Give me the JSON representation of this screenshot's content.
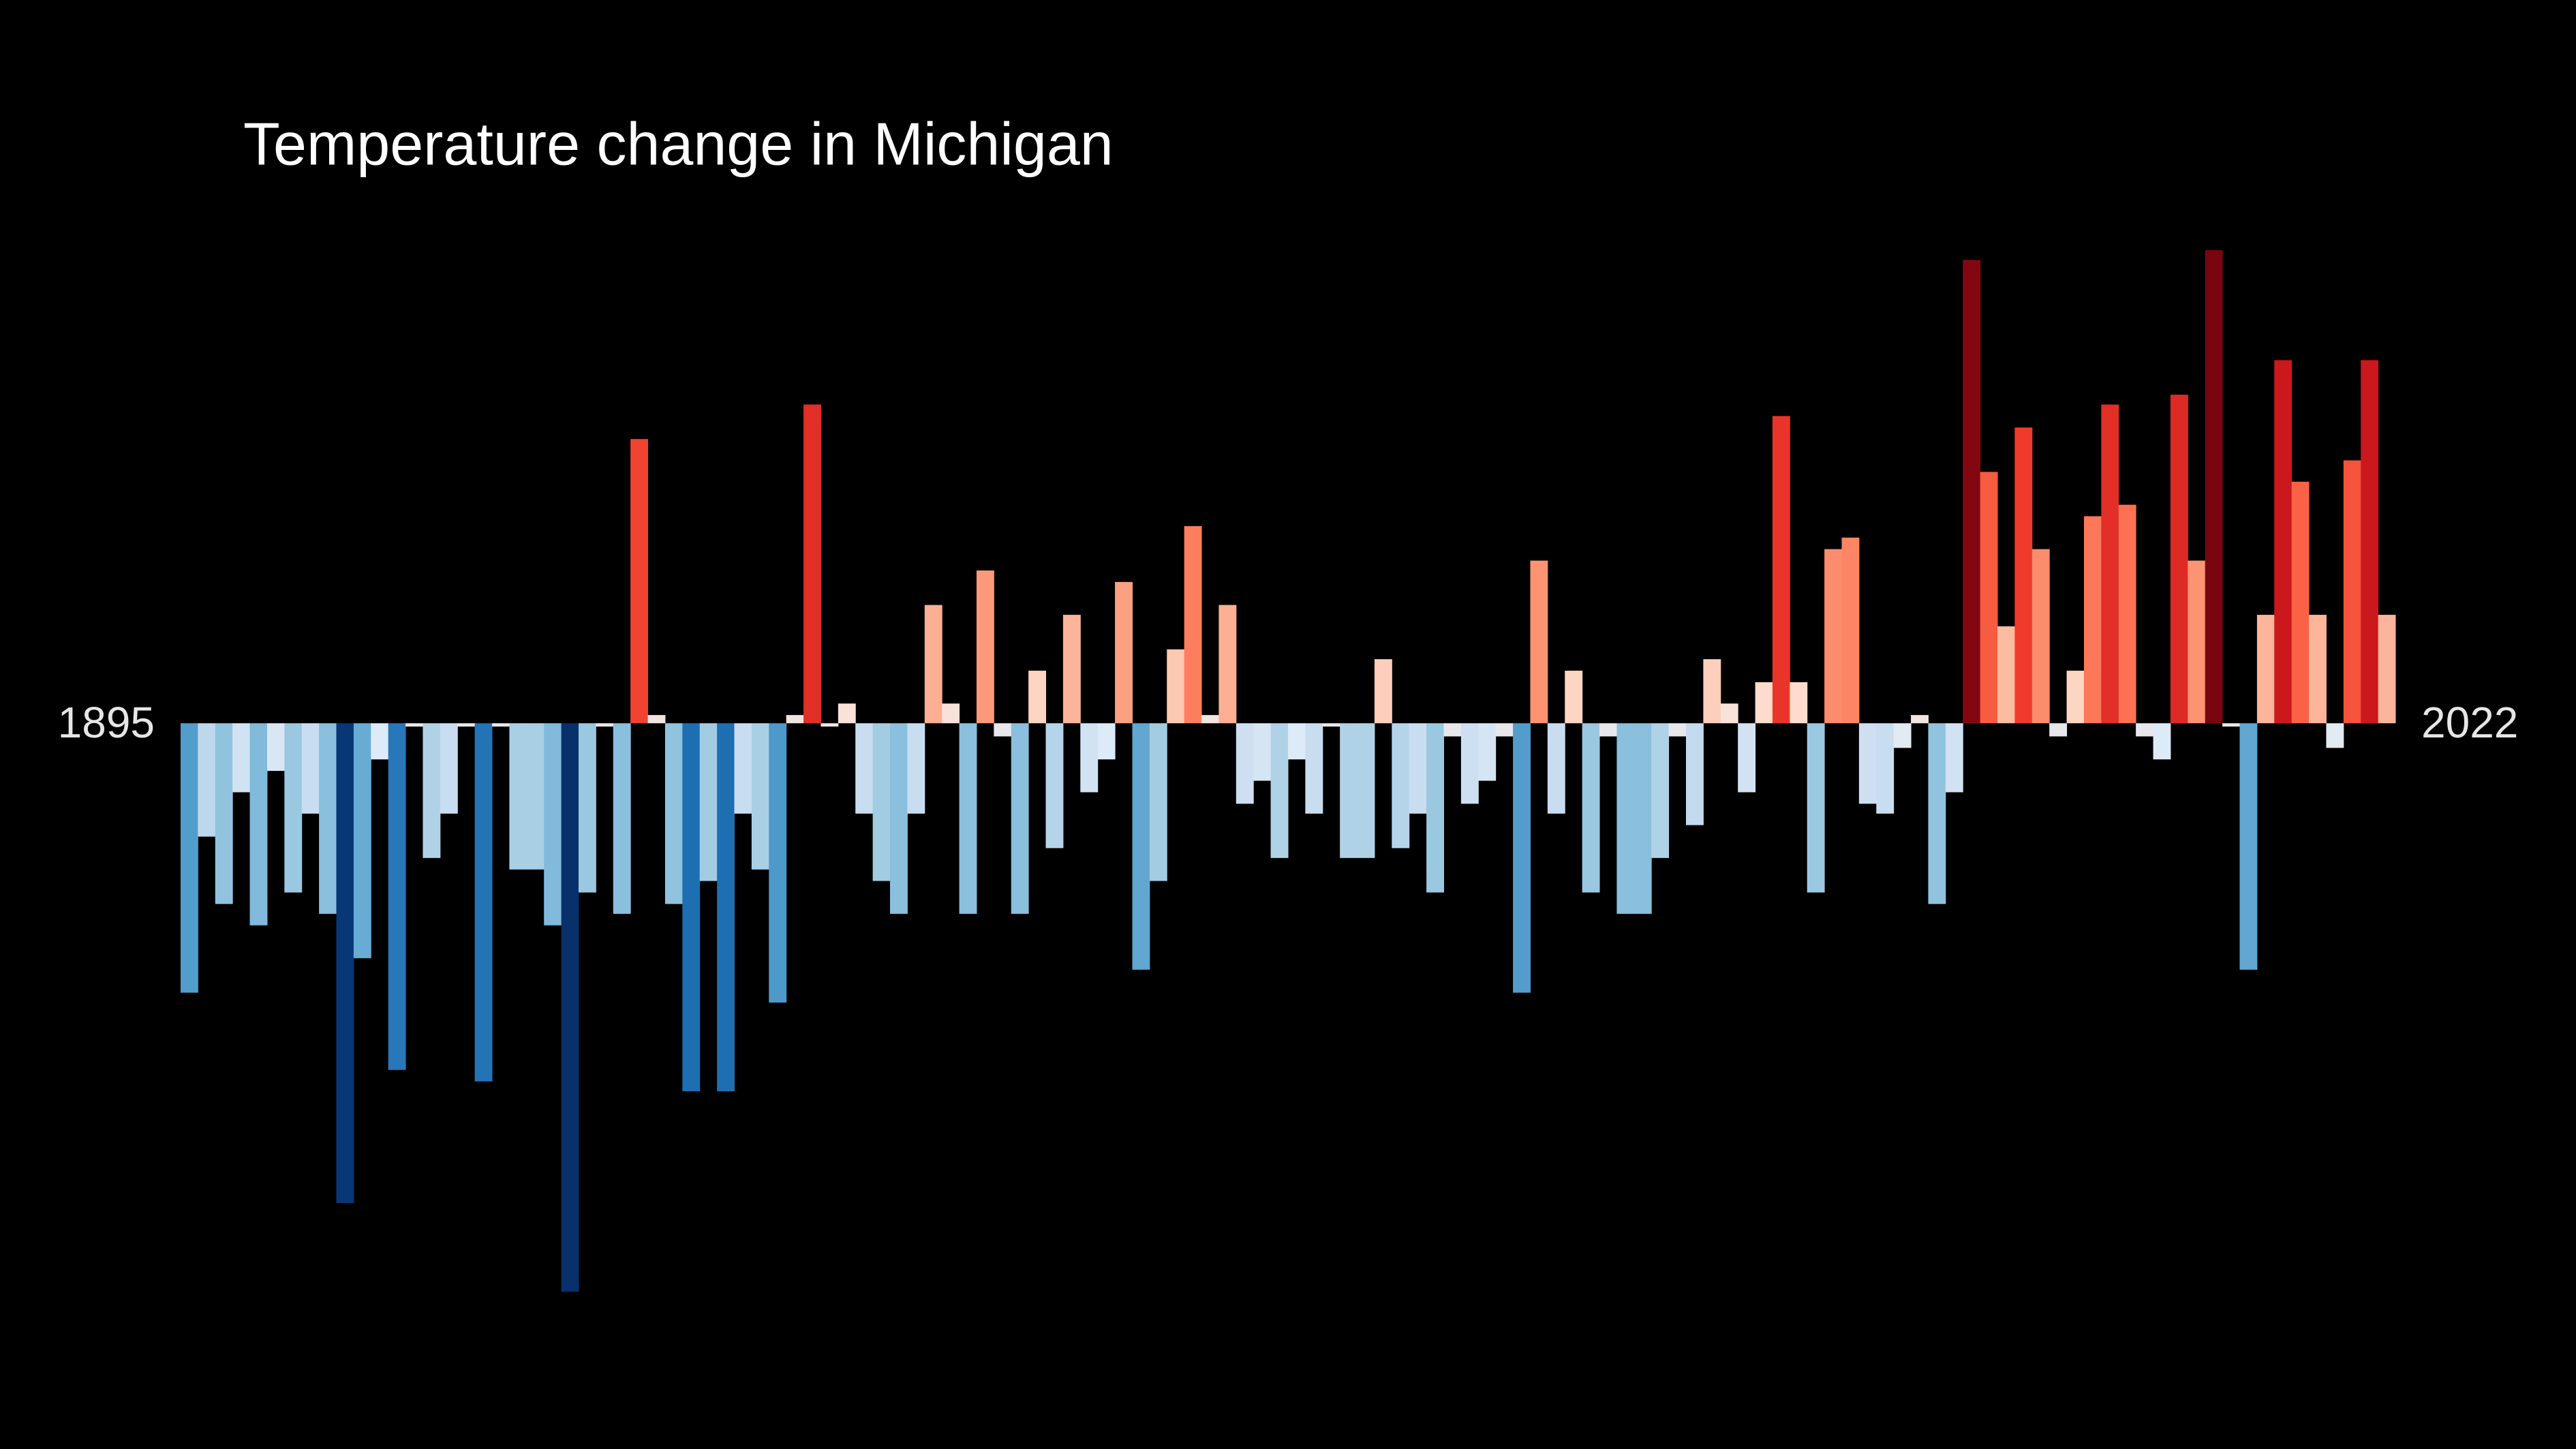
{
  "chart_data": {
    "type": "bar",
    "title": "Temperature change in Michigan",
    "categories": [
      "1895",
      null,
      null,
      null,
      null,
      null,
      null,
      null,
      null,
      null,
      null,
      null,
      null,
      null,
      null,
      null,
      null,
      null,
      null,
      null,
      null,
      null,
      null,
      null,
      null,
      null,
      null,
      null,
      null,
      null,
      null,
      null,
      null,
      null,
      null,
      null,
      null,
      null,
      null,
      null,
      null,
      null,
      null,
      null,
      null,
      null,
      null,
      null,
      null,
      null,
      null,
      null,
      null,
      null,
      null,
      null,
      null,
      null,
      null,
      null,
      null,
      null,
      null,
      null,
      null,
      null,
      null,
      null,
      null,
      null,
      null,
      null,
      null,
      null,
      null,
      null,
      null,
      null,
      null,
      null,
      null,
      null,
      null,
      null,
      null,
      null,
      null,
      null,
      null,
      null,
      null,
      null,
      null,
      null,
      null,
      null,
      null,
      null,
      null,
      null,
      null,
      null,
      null,
      null,
      null,
      null,
      null,
      null,
      null,
      null,
      null,
      null,
      null,
      null,
      null,
      null,
      null,
      null,
      null,
      null,
      null,
      null,
      null,
      null,
      null,
      null,
      null,
      "2022"
    ],
    "values": [
      -1.64,
      -0.69,
      -1.1,
      -0.42,
      -1.23,
      -0.29,
      -1.03,
      -0.55,
      -1.16,
      -2.92,
      -1.43,
      -0.22,
      -2.11,
      -0.02,
      -0.82,
      -0.55,
      -0.02,
      -2.18,
      -0.02,
      -0.89,
      -0.89,
      -1.23,
      -3.46,
      -1.03,
      -0.02,
      -1.16,
      1.73,
      0.05,
      -1.1,
      -2.24,
      -0.96,
      -2.24,
      -0.55,
      -0.89,
      -1.7,
      0.05,
      1.94,
      -0.02,
      0.12,
      -0.55,
      -0.96,
      -1.16,
      -0.55,
      0.72,
      0.12,
      -1.16,
      0.93,
      -0.08,
      -1.16,
      0.32,
      -0.76,
      0.66,
      -0.42,
      -0.22,
      0.86,
      -1.5,
      -0.96,
      0.45,
      1.2,
      0.05,
      0.72,
      -0.49,
      -0.35,
      -0.82,
      -0.22,
      -0.55,
      -0.02,
      -0.82,
      -0.82,
      0.39,
      -0.76,
      -0.55,
      -1.03,
      -0.08,
      -0.49,
      -0.35,
      -0.08,
      -1.64,
      0.99,
      -0.55,
      0.32,
      -1.03,
      -0.08,
      -1.16,
      -1.16,
      -0.82,
      -0.08,
      -0.62,
      0.39,
      0.12,
      -0.42,
      0.25,
      1.87,
      0.25,
      -1.03,
      1.06,
      1.13,
      -0.49,
      -0.55,
      -0.15,
      0.05,
      -1.1,
      -0.42,
      2.82,
      1.53,
      0.59,
      1.8,
      1.06,
      -0.08,
      0.32,
      1.26,
      1.94,
      1.33,
      -0.08,
      -0.22,
      2.0,
      0.99,
      2.88,
      -0.02,
      -1.5,
      0.66,
      2.21,
      1.47,
      0.66,
      -0.15,
      1.6,
      2.21,
      0.66
    ],
    "ylim": [
      -3.6,
      3.0
    ],
    "clim": [
      -3,
      3
    ],
    "colormap": [
      "#08306b",
      "#08519c",
      "#2171b5",
      "#4292c6",
      "#6baed6",
      "#9ecae1",
      "#c6dbef",
      "#deebf7",
      "#fee0d2",
      "#fcbba1",
      "#fc9272",
      "#fb6a4a",
      "#ef3b2c",
      "#cb181d",
      "#a50f15",
      "#67000d"
    ],
    "background": "#000000"
  }
}
